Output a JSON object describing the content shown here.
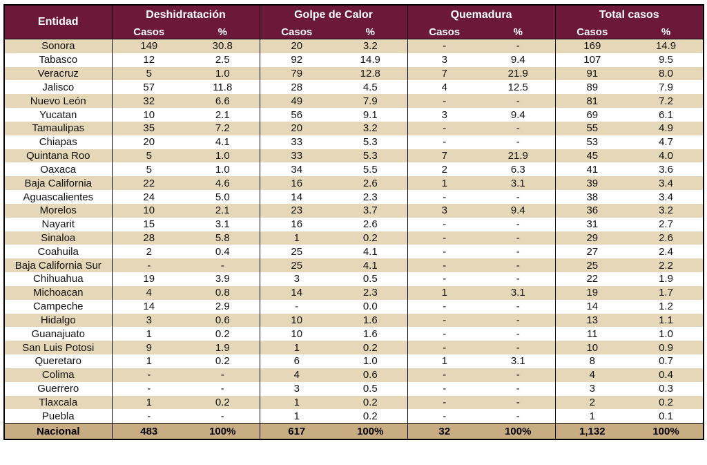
{
  "header": {
    "entity": "Entidad",
    "groups": [
      "Deshidratación",
      "Golpe de Calor",
      "Quemadura",
      "Total casos"
    ],
    "sub_cases": "Casos",
    "sub_pct": "%"
  },
  "rows": [
    [
      "Sonora",
      "149",
      "30.8",
      "20",
      "3.2",
      "-",
      "-",
      "169",
      "14.9"
    ],
    [
      "Tabasco",
      "12",
      "2.5",
      "92",
      "14.9",
      "3",
      "9.4",
      "107",
      "9.5"
    ],
    [
      "Veracruz",
      "5",
      "1.0",
      "79",
      "12.8",
      "7",
      "21.9",
      "91",
      "8.0"
    ],
    [
      "Jalisco",
      "57",
      "11.8",
      "28",
      "4.5",
      "4",
      "12.5",
      "89",
      "7.9"
    ],
    [
      "Nuevo León",
      "32",
      "6.6",
      "49",
      "7.9",
      "-",
      "-",
      "81",
      "7.2"
    ],
    [
      "Yucatan",
      "10",
      "2.1",
      "56",
      "9.1",
      "3",
      "9.4",
      "69",
      "6.1"
    ],
    [
      "Tamaulipas",
      "35",
      "7.2",
      "20",
      "3.2",
      "-",
      "-",
      "55",
      "4.9"
    ],
    [
      "Chiapas",
      "20",
      "4.1",
      "33",
      "5.3",
      "-",
      "-",
      "53",
      "4.7"
    ],
    [
      "Quintana Roo",
      "5",
      "1.0",
      "33",
      "5.3",
      "7",
      "21.9",
      "45",
      "4.0"
    ],
    [
      "Oaxaca",
      "5",
      "1.0",
      "34",
      "5.5",
      "2",
      "6.3",
      "41",
      "3.6"
    ],
    [
      "Baja California",
      "22",
      "4.6",
      "16",
      "2.6",
      "1",
      "3.1",
      "39",
      "3.4"
    ],
    [
      "Aguascalientes",
      "24",
      "5.0",
      "14",
      "2.3",
      "-",
      "-",
      "38",
      "3.4"
    ],
    [
      "Morelos",
      "10",
      "2.1",
      "23",
      "3.7",
      "3",
      "9.4",
      "36",
      "3.2"
    ],
    [
      "Nayarit",
      "15",
      "3.1",
      "16",
      "2.6",
      "-",
      "-",
      "31",
      "2.7"
    ],
    [
      "Sinaloa",
      "28",
      "5.8",
      "1",
      "0.2",
      "-",
      "-",
      "29",
      "2.6"
    ],
    [
      "Coahuila",
      "2",
      "0.4",
      "25",
      "4.1",
      "-",
      "-",
      "27",
      "2.4"
    ],
    [
      "Baja California Sur",
      "-",
      "-",
      "25",
      "4.1",
      "-",
      "-",
      "25",
      "2.2"
    ],
    [
      "Chihuahua",
      "19",
      "3.9",
      "3",
      "0.5",
      "-",
      "-",
      "22",
      "1.9"
    ],
    [
      "Michoacan",
      "4",
      "0.8",
      "14",
      "2.3",
      "1",
      "3.1",
      "19",
      "1.7"
    ],
    [
      "Campeche",
      "14",
      "2.9",
      "-",
      "0.0",
      "-",
      "-",
      "14",
      "1.2"
    ],
    [
      "Hidalgo",
      "3",
      "0.6",
      "10",
      "1.6",
      "-",
      "-",
      "13",
      "1.1"
    ],
    [
      "Guanajuato",
      "1",
      "0.2",
      "10",
      "1.6",
      "-",
      "-",
      "11",
      "1.0"
    ],
    [
      "San Luis Potosi",
      "9",
      "1.9",
      "1",
      "0.2",
      "-",
      "-",
      "10",
      "0.9"
    ],
    [
      "Queretaro",
      "1",
      "0.2",
      "6",
      "1.0",
      "1",
      "3.1",
      "8",
      "0.7"
    ],
    [
      "Colima",
      "-",
      "-",
      "4",
      "0.6",
      "-",
      "-",
      "4",
      "0.4"
    ],
    [
      "Guerrero",
      "-",
      "-",
      "3",
      "0.5",
      "-",
      "-",
      "3",
      "0.3"
    ],
    [
      "Tlaxcala",
      "1",
      "0.2",
      "1",
      "0.2",
      "-",
      "-",
      "2",
      "0.2"
    ],
    [
      "Puebla",
      "-",
      "-",
      "1",
      "0.2",
      "-",
      "-",
      "1",
      "0.1"
    ]
  ],
  "footer": [
    "Nacional",
    "483",
    "100%",
    "617",
    "100%",
    "32",
    "100%",
    "1,132",
    "100%"
  ],
  "colors": {
    "header_bg": "#6b1839",
    "row_stripe": "#e6d7b8",
    "footer_bg": "#c8ac82"
  }
}
